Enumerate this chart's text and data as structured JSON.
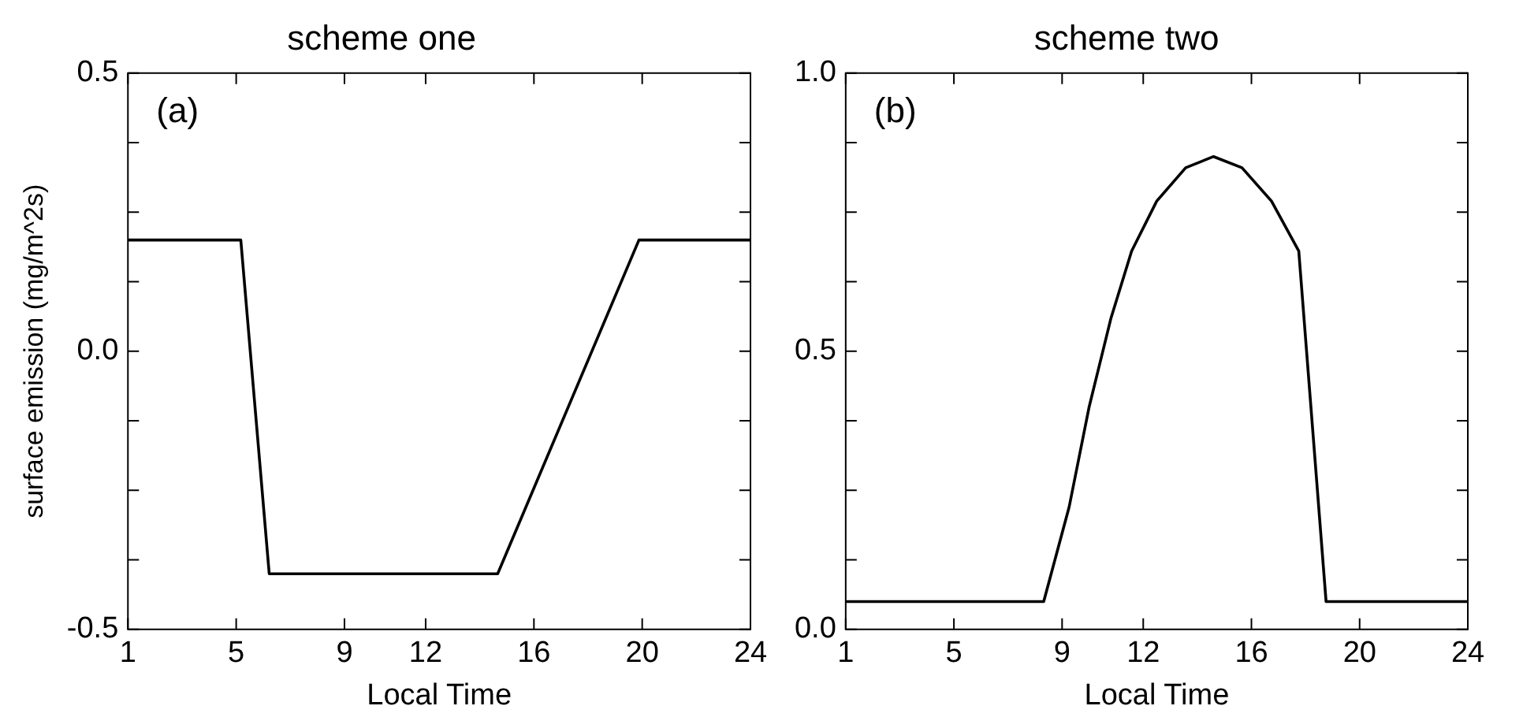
{
  "chart_data": [
    {
      "type": "line",
      "title": "scheme one",
      "xlabel": "Local Time",
      "ylabel": "surface emission (mg/m^2s)",
      "annotations": [
        "(a)"
      ],
      "series": [
        {
          "color": "#000000",
          "x": [
            1,
            5.17,
            6.22,
            14.66,
            19.88,
            24
          ],
          "values": [
            0.2,
            0.2,
            -0.4,
            -0.4,
            0.2,
            0.2
          ]
        }
      ],
      "xlim": [
        1,
        24
      ],
      "xticks": [
        1,
        5,
        9,
        12,
        16,
        20,
        24
      ],
      "ylim": [
        -0.5,
        0.5
      ],
      "yticks": [
        {
          "value": -0.5,
          "label": "-0.5"
        },
        {
          "value": -0.375,
          "label": null
        },
        {
          "value": -0.25,
          "label": null
        },
        {
          "value": -0.125,
          "label": null
        },
        {
          "value": 0,
          "label": "0.0"
        },
        {
          "value": 0.125,
          "label": null
        },
        {
          "value": 0.25,
          "label": null
        },
        {
          "value": 0.375,
          "label": null
        },
        {
          "value": 0.5,
          "label": "0.5"
        }
      ]
    },
    {
      "type": "line",
      "title": "scheme two",
      "xlabel": "Local Time",
      "annotations": [
        "(b)"
      ],
      "series": [
        {
          "color": "#000000",
          "x": [
            1,
            8.32,
            9.26,
            10,
            10.81,
            11.57,
            12.5,
            13.57,
            14.6,
            15.65,
            16.74,
            17.75,
            18.76,
            24
          ],
          "values": [
            0.05,
            0.05,
            0.22,
            0.4,
            0.56,
            0.68,
            0.77,
            0.83,
            0.85,
            0.83,
            0.77,
            0.68,
            0.05,
            0.05
          ]
        }
      ],
      "xlim": [
        1,
        24
      ],
      "xticks": [
        1,
        5,
        9,
        12,
        16,
        20,
        24
      ],
      "ylim": [
        0,
        1
      ],
      "yticks": [
        {
          "value": 0,
          "label": "0.0"
        },
        {
          "value": 0.125,
          "label": null
        },
        {
          "value": 0.25,
          "label": null
        },
        {
          "value": 0.375,
          "label": null
        },
        {
          "value": 0.5,
          "label": "0.5"
        },
        {
          "value": 0.625,
          "label": null
        },
        {
          "value": 0.75,
          "label": null
        },
        {
          "value": 0.875,
          "label": null
        },
        {
          "value": 1,
          "label": "1.0"
        }
      ]
    }
  ]
}
